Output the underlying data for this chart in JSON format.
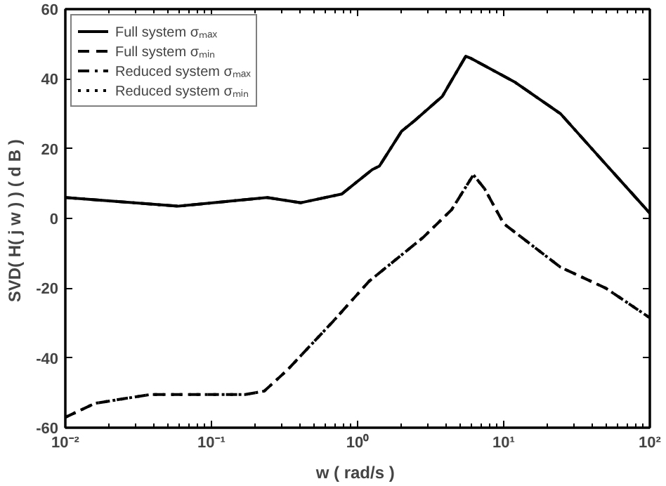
{
  "chart_data": {
    "type": "line",
    "xlabel": "w  ( rad/s )",
    "ylabel": "SVD( H( j w ) )  ( d B )",
    "log": "x",
    "grid": false,
    "legend": "top left",
    "xlim": [
      0.01,
      100
    ],
    "xticks": [
      {
        "value": 0.01,
        "label": "10⁻²"
      },
      {
        "value": 0.1,
        "label": "10⁻¹"
      },
      {
        "value": 1,
        "label": "10⁰"
      },
      {
        "value": 10,
        "label": "10¹"
      },
      {
        "value": 100,
        "label": "10²"
      }
    ],
    "ylim": [
      -60,
      60
    ],
    "yticks": [
      -60,
      -40,
      -20,
      0,
      20,
      40,
      60
    ],
    "series": [
      {
        "name": "Full system σₘₐₓ",
        "color": "#000000",
        "line_style": "solid",
        "x": [
          0.01,
          0.059,
          0.24,
          0.41,
          0.78,
          1.26,
          1.41,
          2.0,
          2.45,
          3.8,
          5.5,
          5.9,
          12,
          24.5,
          50,
          100
        ],
        "values": [
          6,
          3.5,
          6,
          4.5,
          7,
          14,
          15,
          25,
          28,
          35,
          46.5,
          46,
          39,
          30,
          15.5,
          1.5
        ]
      },
      {
        "name": "Full system σₘᵢₙ",
        "color": "#000000",
        "line_style": "dashed",
        "x": [
          0.01,
          0.016,
          0.038,
          0.17,
          0.23,
          0.33,
          0.68,
          1.2,
          2.8,
          4.4,
          6.2,
          7.4,
          10,
          24.5,
          50,
          100
        ],
        "values": [
          -57,
          -53,
          -50.5,
          -50.5,
          -49.5,
          -43.5,
          -29.5,
          -18,
          -5.5,
          2.5,
          12.5,
          8.5,
          -1.5,
          -14,
          -20,
          -28.5
        ]
      },
      {
        "name": "Reduced system σₘₐₓ",
        "color": "#000000",
        "line_style": "dashdot",
        "x": [
          0.01,
          0.059,
          0.24,
          0.41,
          0.78,
          1.26,
          1.41,
          2.0,
          2.45,
          3.8,
          5.5,
          5.9,
          12,
          24.5,
          50,
          100
        ],
        "values": [
          6,
          3.5,
          6,
          4.5,
          7,
          14,
          15,
          25,
          28,
          35,
          46.5,
          46,
          39,
          30,
          15.5,
          1.5
        ]
      },
      {
        "name": "Reduced system σₘᵢₙ",
        "color": "#000000",
        "line_style": "dotted",
        "x": [
          0.01,
          0.016,
          0.038,
          0.17,
          0.23,
          0.33,
          0.68,
          1.2,
          2.8,
          4.4,
          6.2,
          7.4,
          10,
          24.5,
          50,
          100
        ],
        "values": [
          -57,
          -53,
          -50.5,
          -50.5,
          -49.5,
          -43.5,
          -29.5,
          -18,
          -5.5,
          2.5,
          12.5,
          8.5,
          -1.5,
          -14,
          -20,
          -28.5
        ]
      }
    ]
  }
}
